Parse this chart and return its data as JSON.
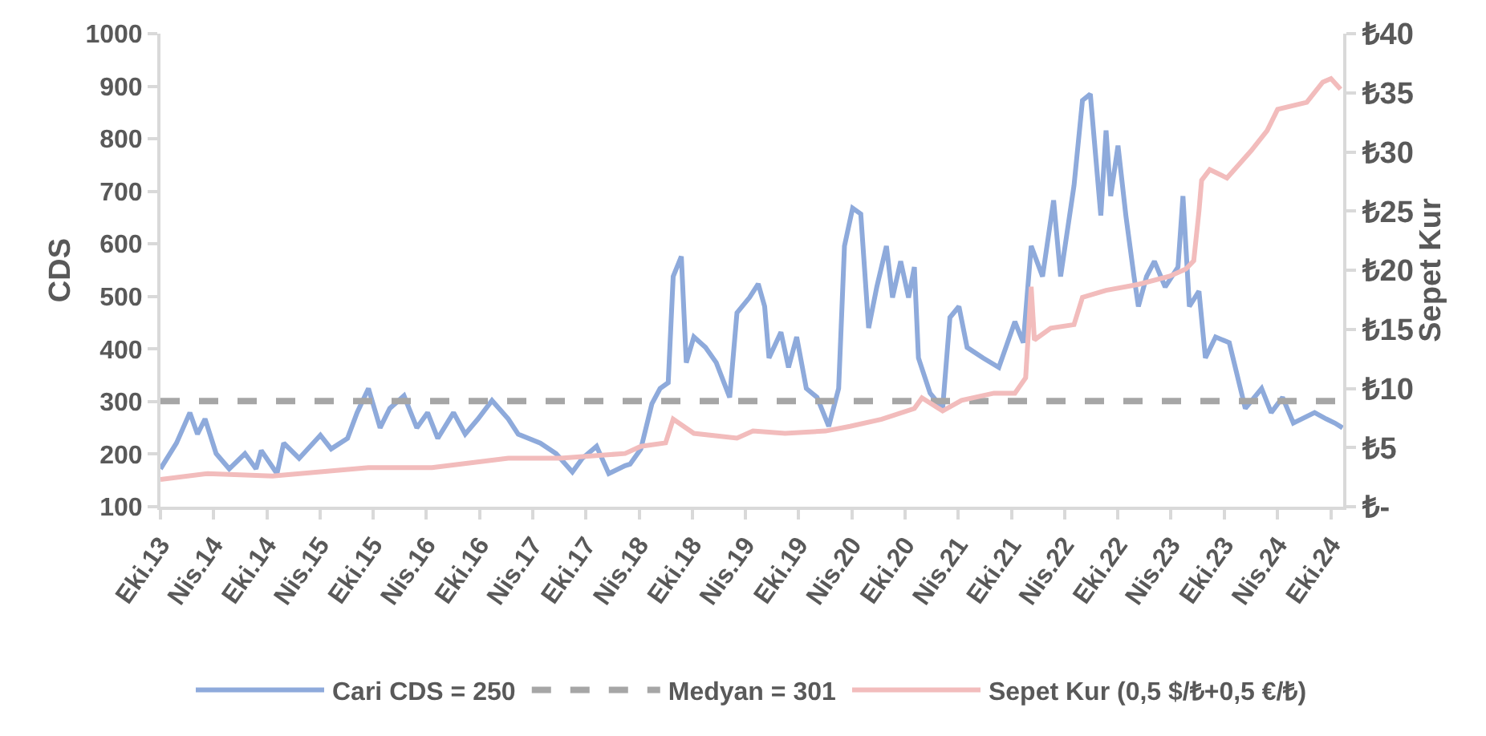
{
  "chart_data": {
    "type": "line",
    "ylabel": "CDS",
    "y2label": "Sepet Kur",
    "ylim": [
      100,
      1000
    ],
    "yticks": [
      100,
      200,
      300,
      400,
      500,
      600,
      700,
      800,
      900,
      1000
    ],
    "y2lim": [
      0,
      40
    ],
    "y2ticks": [
      {
        "value": 0,
        "label": "₺-"
      },
      {
        "value": 5,
        "label": "₺5"
      },
      {
        "value": 10,
        "label": "₺10"
      },
      {
        "value": 15,
        "label": "₺15"
      },
      {
        "value": 20,
        "label": "₺20"
      },
      {
        "value": 25,
        "label": "₺25"
      },
      {
        "value": 30,
        "label": "₺30"
      },
      {
        "value": 35,
        "label": "₺35"
      },
      {
        "value": 40,
        "label": "₺40"
      }
    ],
    "xlim": [
      "2013-10-01",
      "2024-11-12"
    ],
    "xticks": [
      {
        "value": "2013-10-01",
        "label": "Eki.13"
      },
      {
        "value": "2014-04-01",
        "label": "Nis.14"
      },
      {
        "value": "2014-10-01",
        "label": "Eki.14"
      },
      {
        "value": "2015-04-01",
        "label": "Nis.15"
      },
      {
        "value": "2015-10-01",
        "label": "Eki.15"
      },
      {
        "value": "2016-04-01",
        "label": "Nis.16"
      },
      {
        "value": "2016-10-01",
        "label": "Eki.16"
      },
      {
        "value": "2017-04-01",
        "label": "Nis.17"
      },
      {
        "value": "2017-10-01",
        "label": "Eki.17"
      },
      {
        "value": "2018-04-01",
        "label": "Nis.18"
      },
      {
        "value": "2018-10-01",
        "label": "Eki.18"
      },
      {
        "value": "2019-04-01",
        "label": "Nis.19"
      },
      {
        "value": "2019-10-01",
        "label": "Eki.19"
      },
      {
        "value": "2020-04-01",
        "label": "Nis.20"
      },
      {
        "value": "2020-10-01",
        "label": "Eki.20"
      },
      {
        "value": "2021-04-01",
        "label": "Nis.21"
      },
      {
        "value": "2021-10-01",
        "label": "Eki.21"
      },
      {
        "value": "2022-04-01",
        "label": "Nis.22"
      },
      {
        "value": "2022-10-01",
        "label": "Eki.22"
      },
      {
        "value": "2023-04-01",
        "label": "Nis.23"
      },
      {
        "value": "2023-10-01",
        "label": "Eki.23"
      },
      {
        "value": "2024-04-01",
        "label": "Nis.24"
      },
      {
        "value": "2024-10-01",
        "label": "Eki.24"
      }
    ],
    "legend": "bottom",
    "marker": "none",
    "line_style": "solid",
    "ref_lines": [
      {
        "axis": "y",
        "value": 301,
        "label": "Medyan = 301",
        "color": "#a6a6a6",
        "line_style": "dashed"
      }
    ],
    "series": [
      {
        "name": "Cari CDS = 250",
        "color": "#8eaadb",
        "x": [
          "2013-10-01",
          "2013-11-25",
          "2014-01-10",
          "2014-02-05",
          "2014-03-03",
          "2014-04-10",
          "2014-05-25",
          "2014-07-18",
          "2014-08-25",
          "2014-09-12",
          "2014-11-05",
          "2014-11-28",
          "2015-01-20",
          "2015-04-03",
          "2015-05-10",
          "2015-07-05",
          "2015-08-07",
          "2015-09-15",
          "2015-10-25",
          "2015-11-27",
          "2016-01-15",
          "2016-02-28",
          "2016-04-05",
          "2016-05-10",
          "2016-07-03",
          "2016-08-12",
          "2016-09-25",
          "2016-11-12",
          "2017-01-07",
          "2017-02-10",
          "2017-04-27",
          "2017-06-20",
          "2017-08-15",
          "2017-09-18",
          "2017-11-06",
          "2017-12-18",
          "2018-02-12",
          "2018-03-01",
          "2018-04-07",
          "2018-05-15",
          "2018-06-12",
          "2018-07-10",
          "2018-07-27",
          "2018-08-24",
          "2018-09-10",
          "2018-10-06",
          "2018-11-15",
          "2018-12-22",
          "2019-02-06",
          "2019-03-03",
          "2019-04-15",
          "2019-05-15",
          "2019-06-06",
          "2019-06-21",
          "2019-08-01",
          "2019-08-27",
          "2019-09-24",
          "2019-10-27",
          "2019-12-03",
          "2020-01-12",
          "2020-02-15",
          "2020-03-06",
          "2020-04-03",
          "2020-05-01",
          "2020-05-28",
          "2020-06-25",
          "2020-07-28",
          "2020-08-18",
          "2020-09-15",
          "2020-10-12",
          "2020-11-01",
          "2020-11-15",
          "2020-12-25",
          "2021-02-06",
          "2021-03-03",
          "2021-04-03",
          "2021-05-01",
          "2021-06-25",
          "2021-08-18",
          "2021-10-12",
          "2021-11-10",
          "2021-12-07",
          "2022-01-15",
          "2022-02-22",
          "2022-03-18",
          "2022-05-03",
          "2022-06-01",
          "2022-06-28",
          "2022-08-03",
          "2022-08-21",
          "2022-09-06",
          "2022-10-01",
          "2022-10-28",
          "2022-11-25",
          "2022-12-10",
          "2023-01-07",
          "2023-02-03",
          "2023-03-12",
          "2023-04-25",
          "2023-05-12",
          "2023-06-03",
          "2023-07-06",
          "2023-07-28",
          "2023-09-01",
          "2023-10-18",
          "2023-12-12",
          "2024-02-06",
          "2024-03-10",
          "2024-04-18",
          "2024-05-25",
          "2024-08-06",
          "2024-09-15",
          "2024-10-15",
          "2024-11-10"
        ],
        "values": [
          172,
          221,
          279,
          238,
          267,
          201,
          172,
          201,
          172,
          207,
          163,
          221,
          192,
          236,
          210,
          230,
          279,
          325,
          250,
          287,
          311,
          250,
          279,
          230,
          279,
          238,
          267,
          302,
          267,
          238,
          221,
          201,
          166,
          192,
          215,
          163,
          178,
          181,
          210,
          296,
          325,
          336,
          538,
          576,
          374,
          423,
          403,
          374,
          308,
          469,
          498,
          524,
          481,
          383,
          432,
          365,
          423,
          325,
          308,
          253,
          325,
          596,
          668,
          657,
          440,
          518,
          596,
          498,
          567,
          498,
          556,
          383,
          316,
          287,
          460,
          481,
          403,
          383,
          365,
          452,
          412,
          596,
          538,
          683,
          538,
          711,
          873,
          885,
          654,
          816,
          691,
          787,
          654,
          538,
          481,
          538,
          567,
          518,
          556,
          691,
          481,
          510,
          383,
          423,
          412,
          287,
          325,
          279,
          308,
          259,
          279,
          267,
          259,
          250
        ]
      },
      {
        "name": "Sepet Kur (0,5 $/₺+0,5 €/₺)",
        "color": "#f2bcbc",
        "axis": "y2",
        "x": [
          "2013-10-01",
          "2014-03-12",
          "2014-10-20",
          "2015-09-15",
          "2016-04-20",
          "2017-01-07",
          "2017-07-05",
          "2018-02-12",
          "2018-04-07",
          "2018-07-01",
          "2018-07-27",
          "2018-10-06",
          "2019-03-03",
          "2019-04-27",
          "2019-08-15",
          "2020-01-01",
          "2020-03-25",
          "2020-07-12",
          "2020-11-01",
          "2020-11-27",
          "2021-02-06",
          "2021-04-12",
          "2021-08-01",
          "2021-10-12",
          "2021-11-18",
          "2021-12-07",
          "2021-12-18",
          "2022-02-12",
          "2022-05-03",
          "2022-06-01",
          "2022-08-21",
          "2022-12-10",
          "2023-03-28",
          "2023-05-22",
          "2023-06-18",
          "2023-07-06",
          "2023-07-15",
          "2023-08-12",
          "2023-10-10",
          "2024-01-01",
          "2024-02-25",
          "2024-04-01",
          "2024-07-10",
          "2024-09-03",
          "2024-10-01",
          "2024-11-03"
        ],
        "values": [
          2.3,
          2.8,
          2.6,
          3.3,
          3.3,
          4.1,
          4.1,
          4.5,
          5.1,
          5.4,
          7.4,
          6.2,
          5.8,
          6.4,
          6.2,
          6.4,
          6.8,
          7.4,
          8.3,
          9.2,
          8.1,
          9.0,
          9.6,
          9.6,
          10.9,
          18.6,
          14.1,
          15.1,
          15.4,
          17.7,
          18.3,
          18.8,
          19.5,
          20.1,
          20.8,
          25.0,
          27.6,
          28.5,
          27.8,
          30.1,
          31.8,
          33.6,
          34.2,
          35.9,
          36.2,
          35.3
        ]
      }
    ]
  }
}
